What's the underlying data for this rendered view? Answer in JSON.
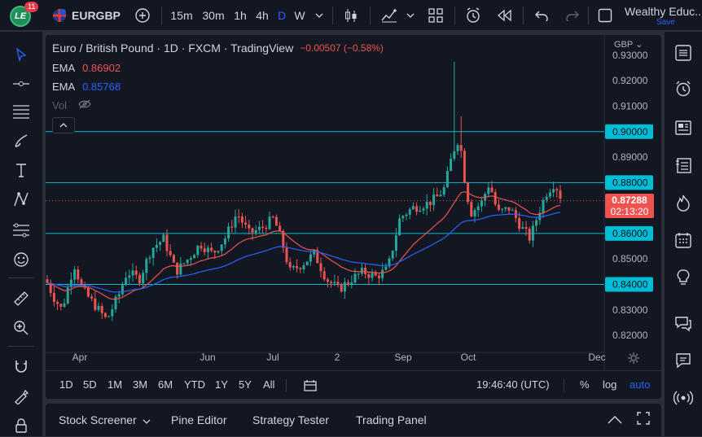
{
  "topbar": {
    "notif_count": "11",
    "symbol": "EURGBP",
    "timeframes": [
      "15m",
      "30m",
      "1h",
      "4h",
      "D",
      "W"
    ],
    "active_timeframe": "D",
    "layout_name": "Wealthy Educ...",
    "save_label": "Save"
  },
  "legend": {
    "title": "Euro / British Pound · 1D · FXCM · TradingView",
    "change": "−0.00507 (−0.58%)",
    "ema1_label": "EMA",
    "ema1_value": "0.86902",
    "ema2_label": "EMA",
    "ema2_value": "0.85768",
    "vol_label": "Vol"
  },
  "price_axis": {
    "currency": "GBP",
    "ticks": [
      "0.93000",
      "0.92000",
      "0.91000",
      "0.90000",
      "0.89000",
      "0.88000",
      "0.87000",
      "0.86000",
      "0.85000",
      "0.84000",
      "0.83000",
      "0.82000"
    ],
    "highlighted": [
      "0.90000",
      "0.88000",
      "0.86000",
      "0.84000"
    ],
    "last_price": "0.87288",
    "countdown": "02:13:20"
  },
  "time_axis": {
    "labels": [
      "Apr",
      "Jun",
      "Jul",
      "2",
      "Sep",
      "Oct",
      "Dec"
    ]
  },
  "ranges": [
    "1D",
    "5D",
    "1M",
    "3M",
    "6M",
    "YTD",
    "1Y",
    "5Y",
    "All"
  ],
  "status": {
    "clock": "19:46:40 (UTC)",
    "percent": "%",
    "log": "log",
    "auto": "auto"
  },
  "bottom_tabs": [
    "Stock Screener",
    "Pine Editor",
    "Strategy Tester",
    "Trading Panel"
  ],
  "colors": {
    "up": "#26a69a",
    "down": "#ef5350",
    "ema_fast": "#ef5350",
    "ema_slow": "#2962ff",
    "hline": "#00bcd4",
    "accent": "#2962ff"
  },
  "chart_data": {
    "type": "candlestick",
    "y_range": [
      0.8165,
      0.9335
    ],
    "horizontal_levels": [
      0.9,
      0.88,
      0.86,
      0.84
    ],
    "last_price": 0.87288,
    "x_labels": [
      "Apr",
      "Jun",
      "Jul",
      "2",
      "Sep",
      "Oct",
      "Dec"
    ],
    "ema_fast_last": 0.86902,
    "ema_slow_last": 0.85768
  }
}
